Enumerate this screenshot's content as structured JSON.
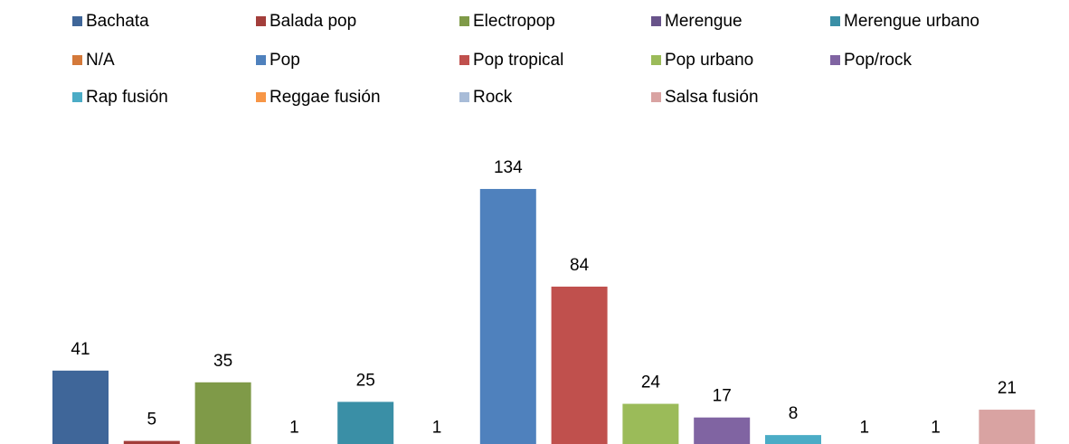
{
  "chart_data": {
    "type": "bar",
    "categories": [
      "Bachata",
      "Balada pop",
      "Electropop",
      "Merengue",
      "Merengue urbano",
      "N/A",
      "Pop",
      "Pop tropical",
      "Pop urbano",
      "Pop/rock",
      "Rap fusión",
      "Reggae fusión",
      "Rock",
      "Salsa fusión"
    ],
    "values": [
      41,
      5,
      35,
      1,
      25,
      1,
      134,
      84,
      24,
      17,
      8,
      1,
      1,
      21
    ],
    "colors": [
      "#3f6699",
      "#a33e3b",
      "#7f9a48",
      "#68538a",
      "#3a8fa6",
      "#d4793a",
      "#4f81bd",
      "#c0504d",
      "#9bbb59",
      "#8064a2",
      "#4bacc6",
      "#f79646",
      "#a8bcd8",
      "#d9a3a2"
    ]
  }
}
